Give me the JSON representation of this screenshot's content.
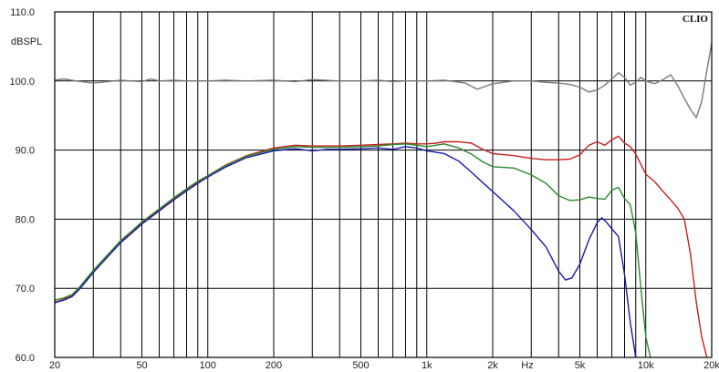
{
  "chart_data": {
    "type": "line",
    "brand": "CLIO",
    "ylabel": "dBSPL",
    "xunit": "Hz",
    "xscale": "log",
    "xlim": [
      20,
      20000
    ],
    "ylim": [
      60,
      110
    ],
    "grid": true,
    "y_ticks": [
      {
        "value": 110,
        "label": "110.0"
      },
      {
        "value": 100,
        "label": "100.0"
      },
      {
        "value": 90,
        "label": "90.0"
      },
      {
        "value": 80,
        "label": "80.0"
      },
      {
        "value": 70,
        "label": "70.0"
      },
      {
        "value": 60,
        "label": "60.0"
      }
    ],
    "x_ticks": [
      {
        "value": 20,
        "label": "20"
      },
      {
        "value": 50,
        "label": "50"
      },
      {
        "value": 100,
        "label": "100"
      },
      {
        "value": 200,
        "label": "200"
      },
      {
        "value": 500,
        "label": "500"
      },
      {
        "value": 1000,
        "label": "1k"
      },
      {
        "value": 2000,
        "label": "2k"
      },
      {
        "value": 5000,
        "label": "5k"
      },
      {
        "value": 10000,
        "label": "10k"
      },
      {
        "value": 20000,
        "label": "20k"
      }
    ],
    "x_grid": [
      20,
      30,
      40,
      50,
      60,
      70,
      80,
      90,
      100,
      200,
      300,
      400,
      500,
      600,
      700,
      800,
      900,
      1000,
      2000,
      3000,
      4000,
      5000,
      6000,
      7000,
      8000,
      9000,
      10000,
      20000
    ],
    "series": [
      {
        "color": "#7a7a7a",
        "points": [
          [
            20,
            100.1
          ],
          [
            22,
            100.3
          ],
          [
            25,
            100.0
          ],
          [
            30,
            99.7
          ],
          [
            35,
            99.9
          ],
          [
            40,
            100.1
          ],
          [
            45,
            100.0
          ],
          [
            50,
            99.9
          ],
          [
            55,
            100.3
          ],
          [
            60,
            100.0
          ],
          [
            70,
            100.1
          ],
          [
            80,
            100.0
          ],
          [
            100,
            100.0
          ],
          [
            120,
            100.1
          ],
          [
            150,
            100.0
          ],
          [
            200,
            100.1
          ],
          [
            250,
            99.9
          ],
          [
            300,
            100.2
          ],
          [
            400,
            100.0
          ],
          [
            500,
            100.0
          ],
          [
            600,
            100.1
          ],
          [
            700,
            99.9
          ],
          [
            800,
            100.0
          ],
          [
            1000,
            100.0
          ],
          [
            1200,
            100.1
          ],
          [
            1500,
            99.7
          ],
          [
            1700,
            98.8
          ],
          [
            2000,
            99.6
          ],
          [
            2500,
            100.0
          ],
          [
            3000,
            100.0
          ],
          [
            3500,
            99.8
          ],
          [
            4000,
            99.7
          ],
          [
            4500,
            99.5
          ],
          [
            5000,
            99.1
          ],
          [
            5500,
            98.4
          ],
          [
            6000,
            98.7
          ],
          [
            6500,
            99.4
          ],
          [
            7000,
            100.3
          ],
          [
            7500,
            101.2
          ],
          [
            8000,
            100.5
          ],
          [
            8500,
            99.4
          ],
          [
            9000,
            99.8
          ],
          [
            9500,
            100.5
          ],
          [
            10000,
            100.0
          ],
          [
            11000,
            99.6
          ],
          [
            12000,
            100.2
          ],
          [
            13000,
            100.9
          ],
          [
            14000,
            99.3
          ],
          [
            15000,
            97.5
          ],
          [
            16000,
            95.9
          ],
          [
            17000,
            94.7
          ],
          [
            18000,
            97.0
          ],
          [
            19000,
            101.5
          ],
          [
            20000,
            105.5
          ]
        ]
      },
      {
        "color": "#c62020",
        "points": [
          [
            20,
            68.0
          ],
          [
            22,
            68.4
          ],
          [
            24,
            68.9
          ],
          [
            26,
            70.0
          ],
          [
            30,
            72.5
          ],
          [
            35,
            74.8
          ],
          [
            40,
            76.8
          ],
          [
            45,
            78.2
          ],
          [
            50,
            79.5
          ],
          [
            60,
            81.4
          ],
          [
            70,
            83.0
          ],
          [
            80,
            84.3
          ],
          [
            90,
            85.4
          ],
          [
            100,
            86.3
          ],
          [
            120,
            87.8
          ],
          [
            150,
            89.2
          ],
          [
            200,
            90.3
          ],
          [
            250,
            90.7
          ],
          [
            300,
            90.6
          ],
          [
            400,
            90.6
          ],
          [
            500,
            90.7
          ],
          [
            600,
            90.8
          ],
          [
            700,
            90.9
          ],
          [
            800,
            91.0
          ],
          [
            900,
            90.9
          ],
          [
            1000,
            90.9
          ],
          [
            1100,
            91.0
          ],
          [
            1200,
            91.2
          ],
          [
            1400,
            91.2
          ],
          [
            1600,
            91.0
          ],
          [
            1800,
            90.1
          ],
          [
            2000,
            89.5
          ],
          [
            2500,
            89.2
          ],
          [
            3000,
            88.8
          ],
          [
            3500,
            88.6
          ],
          [
            4000,
            88.6
          ],
          [
            4500,
            88.7
          ],
          [
            5000,
            89.3
          ],
          [
            5500,
            90.7
          ],
          [
            6000,
            91.2
          ],
          [
            6500,
            90.7
          ],
          [
            7000,
            91.5
          ],
          [
            7500,
            92.0
          ],
          [
            8000,
            91.0
          ],
          [
            8500,
            90.5
          ],
          [
            9000,
            89.4
          ],
          [
            10000,
            86.5
          ],
          [
            11000,
            85.4
          ],
          [
            12000,
            84.0
          ],
          [
            13000,
            82.8
          ],
          [
            14000,
            81.6
          ],
          [
            15000,
            80.0
          ],
          [
            16000,
            75.0
          ],
          [
            17000,
            68.0
          ],
          [
            18000,
            63.0
          ],
          [
            19000,
            60.0
          ]
        ]
      },
      {
        "color": "#2a8a2a",
        "points": [
          [
            20,
            68.3
          ],
          [
            22,
            68.6
          ],
          [
            24,
            69.1
          ],
          [
            26,
            70.2
          ],
          [
            30,
            72.6
          ],
          [
            35,
            74.9
          ],
          [
            40,
            76.9
          ],
          [
            45,
            78.3
          ],
          [
            50,
            79.6
          ],
          [
            60,
            81.5
          ],
          [
            70,
            83.1
          ],
          [
            80,
            84.4
          ],
          [
            90,
            85.5
          ],
          [
            100,
            86.3
          ],
          [
            120,
            87.7
          ],
          [
            150,
            89.1
          ],
          [
            200,
            90.1
          ],
          [
            250,
            90.5
          ],
          [
            300,
            90.4
          ],
          [
            400,
            90.4
          ],
          [
            500,
            90.5
          ],
          [
            600,
            90.6
          ],
          [
            700,
            90.8
          ],
          [
            800,
            90.9
          ],
          [
            900,
            90.7
          ],
          [
            1000,
            90.5
          ],
          [
            1200,
            90.9
          ],
          [
            1400,
            90.3
          ],
          [
            1600,
            89.4
          ],
          [
            1800,
            88.3
          ],
          [
            2000,
            87.6
          ],
          [
            2500,
            87.4
          ],
          [
            3000,
            86.4
          ],
          [
            3500,
            85.2
          ],
          [
            4000,
            83.4
          ],
          [
            4500,
            82.7
          ],
          [
            5000,
            82.8
          ],
          [
            5500,
            83.2
          ],
          [
            6000,
            83.0
          ],
          [
            6500,
            82.9
          ],
          [
            7000,
            84.2
          ],
          [
            7500,
            84.6
          ],
          [
            8000,
            83.0
          ],
          [
            8500,
            82.1
          ],
          [
            9000,
            78.0
          ],
          [
            9500,
            70.0
          ],
          [
            10000,
            63.0
          ],
          [
            10500,
            60.0
          ]
        ]
      },
      {
        "color": "#1a1aa8",
        "points": [
          [
            20,
            67.9
          ],
          [
            22,
            68.3
          ],
          [
            24,
            68.8
          ],
          [
            26,
            69.9
          ],
          [
            30,
            72.3
          ],
          [
            35,
            74.6
          ],
          [
            40,
            76.6
          ],
          [
            45,
            78.0
          ],
          [
            50,
            79.3
          ],
          [
            60,
            81.2
          ],
          [
            70,
            82.8
          ],
          [
            80,
            84.1
          ],
          [
            90,
            85.2
          ],
          [
            100,
            86.1
          ],
          [
            120,
            87.5
          ],
          [
            150,
            88.9
          ],
          [
            200,
            89.9
          ],
          [
            250,
            90.2
          ],
          [
            300,
            89.9
          ],
          [
            350,
            90.1
          ],
          [
            400,
            90.1
          ],
          [
            500,
            90.2
          ],
          [
            600,
            90.3
          ],
          [
            700,
            90.1
          ],
          [
            800,
            90.5
          ],
          [
            900,
            90.3
          ],
          [
            1000,
            89.9
          ],
          [
            1200,
            89.5
          ],
          [
            1400,
            88.4
          ],
          [
            1600,
            86.8
          ],
          [
            1800,
            85.3
          ],
          [
            2000,
            84.0
          ],
          [
            2500,
            81.2
          ],
          [
            3000,
            78.5
          ],
          [
            3500,
            76.0
          ],
          [
            4000,
            72.5
          ],
          [
            4300,
            71.2
          ],
          [
            4600,
            71.5
          ],
          [
            5000,
            73.5
          ],
          [
            5500,
            77.0
          ],
          [
            6000,
            79.5
          ],
          [
            6300,
            80.2
          ],
          [
            6600,
            79.6
          ],
          [
            7000,
            78.6
          ],
          [
            7500,
            77.5
          ],
          [
            8000,
            72.0
          ],
          [
            8500,
            65.0
          ],
          [
            9000,
            60.0
          ]
        ]
      }
    ]
  }
}
